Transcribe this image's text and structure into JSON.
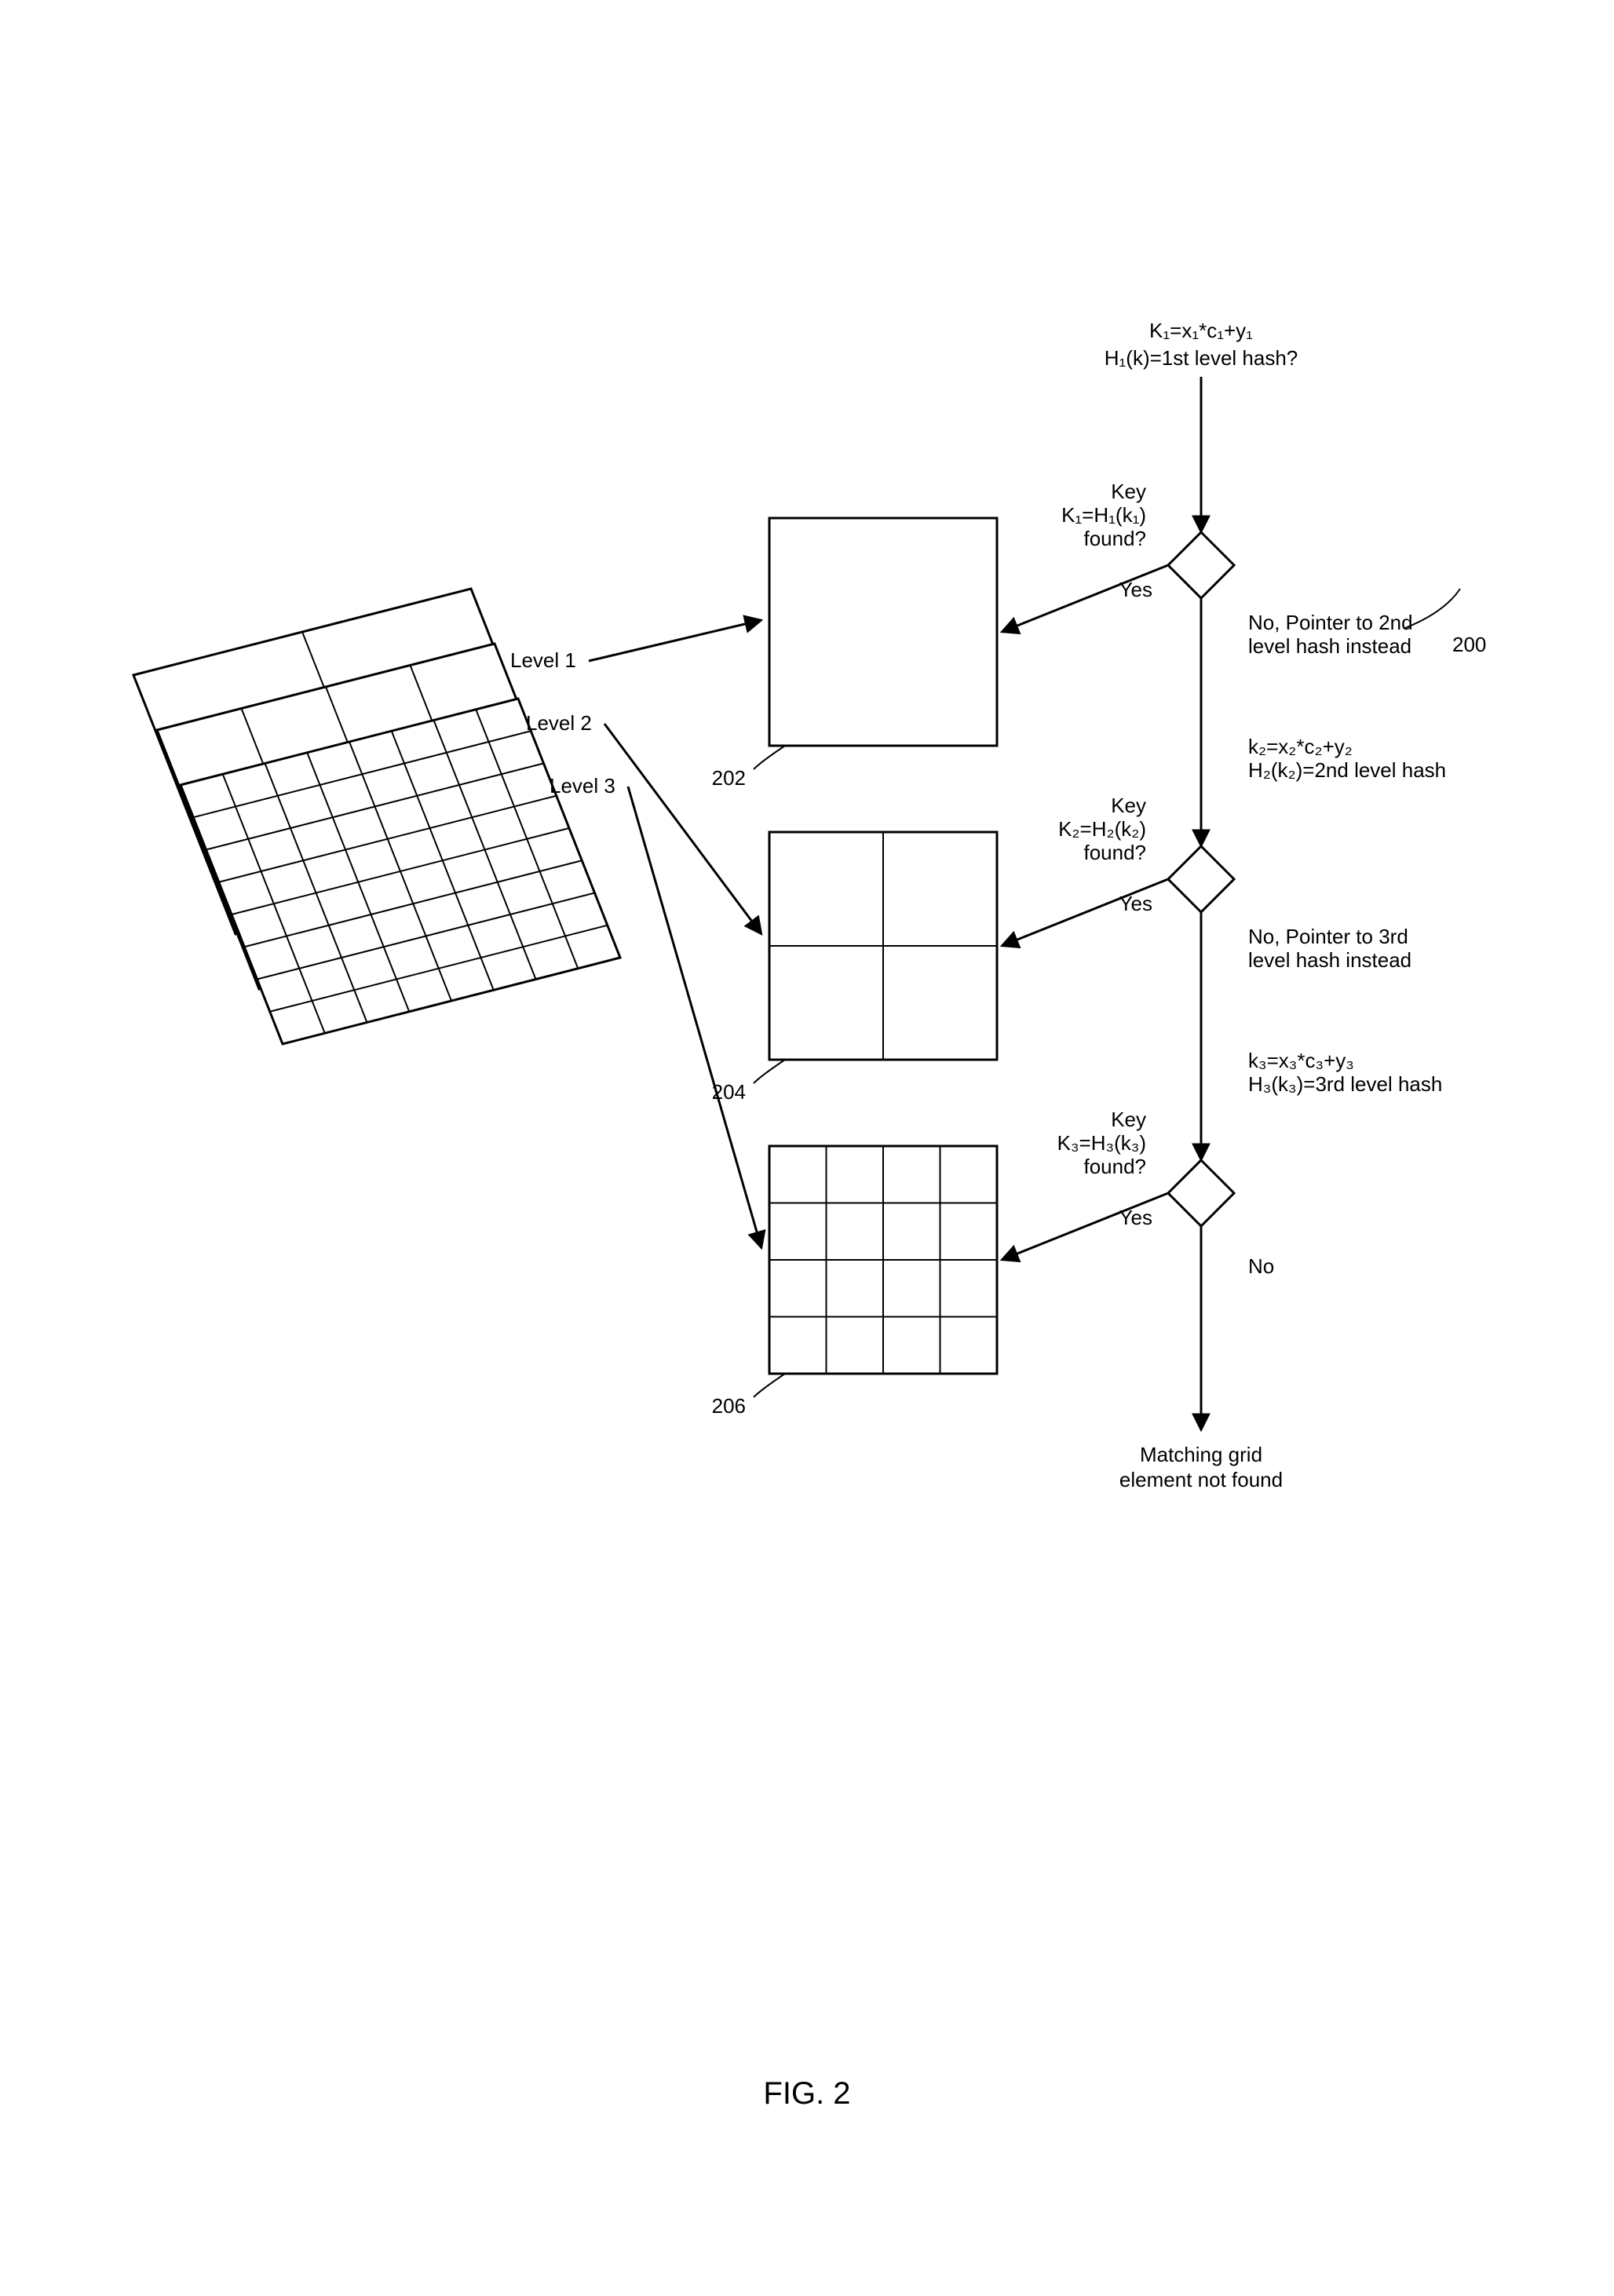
{
  "figure": {
    "ref_number": "200",
    "caption": "FIG. 2",
    "not_found_line1": "Matching grid",
    "not_found_line2": "element not found"
  },
  "levels": [
    {
      "name": "Level 1",
      "ref": "202",
      "grid_n": 1
    },
    {
      "name": "Level 2",
      "ref": "204",
      "grid_n": 2
    },
    {
      "name": "Level 3",
      "ref": "206",
      "grid_n": 4
    }
  ],
  "top_formula": {
    "line1": "K₁=x₁*c₁+y₁",
    "line2": "H₁(k)=1st level hash?"
  },
  "decisions": [
    {
      "key_line1": "Key",
      "key_line2": "K₁=H₁(k₁)",
      "key_line3": "found?",
      "yes": "Yes",
      "no_line1": "No, Pointer to 2nd",
      "no_line2": "level hash instead",
      "next_line1": "k₂=x₂*c₂+y₂",
      "next_line2": "H₂(k₂)=2nd level hash"
    },
    {
      "key_line1": "Key",
      "key_line2": "K₂=H₂(k₂)",
      "key_line3": "found?",
      "yes": "Yes",
      "no_line1": "No, Pointer to 3rd",
      "no_line2": "level hash instead",
      "next_line1": "k₃=x₃*c₃+y₃",
      "next_line2": "H₃(k₃)=3rd level hash"
    },
    {
      "key_line1": "Key",
      "key_line2": "K₃=H₃(k₃)",
      "key_line3": "found?",
      "yes": "Yes",
      "no": "No"
    }
  ],
  "style": {
    "stroke": "#000000",
    "stroke_width": 3,
    "iso_stroke_width": 3,
    "bg": "#ffffff"
  }
}
